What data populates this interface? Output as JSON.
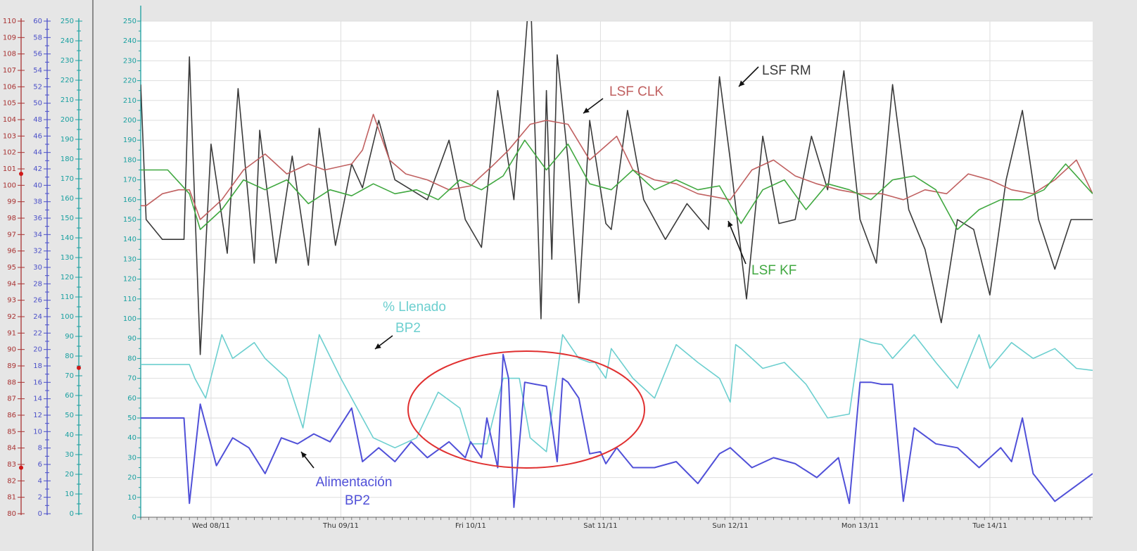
{
  "colors": {
    "axis1": "#a83232",
    "axis2": "#4a4fc8",
    "axis3": "#19a0a0",
    "lsf_rm": "#3a3a3a",
    "lsf_clk": "#c06060",
    "lsf_kf": "#40a840",
    "llenado": "#6ccfcf",
    "alimentacion": "#5050d8",
    "ellipse": "#e03030"
  },
  "left_axes": [
    {
      "min": 80,
      "max": 110,
      "step": 1,
      "label_step": 1,
      "color_key": "axis1",
      "marker_values": [
        100.7,
        82.8
      ]
    },
    {
      "min": 0,
      "max": 60,
      "step": 1,
      "label_step": 2,
      "color_key": "axis2",
      "marker_values": []
    },
    {
      "min": 0,
      "max": 250,
      "step": 5,
      "label_step": 10,
      "color_key": "axis3",
      "marker_values": [
        74
      ]
    }
  ],
  "chart_data": {
    "type": "line",
    "x_type": "time",
    "x_range": [
      "2011-11-07T11:00",
      "2011-11-14T19:00"
    ],
    "x_ticks": [
      {
        "t": "2011-11-08T00:00",
        "label": "Wed 08/11"
      },
      {
        "t": "2011-11-09T00:00",
        "label": "Thu 09/11"
      },
      {
        "t": "2011-11-10T00:00",
        "label": "Fri 10/11"
      },
      {
        "t": "2011-11-11T00:00",
        "label": "Sat 11/11"
      },
      {
        "t": "2011-11-12T00:00",
        "label": "Sun 12/11"
      },
      {
        "t": "2011-11-13T00:00",
        "label": "Mon 13/11"
      },
      {
        "t": "2011-11-14T00:00",
        "label": "Tue 14/11"
      }
    ],
    "ylim": [
      0,
      250
    ],
    "y_ticks": [
      0,
      10,
      20,
      30,
      40,
      50,
      60,
      70,
      80,
      90,
      100,
      110,
      120,
      130,
      140,
      150,
      160,
      170,
      180,
      190,
      200,
      210,
      220,
      230,
      240,
      250
    ],
    "grid": true,
    "series": [
      {
        "name": "LSF RM",
        "color_key": "lsf_rm",
        "x": [
          "2011-11-07T11:00",
          "2011-11-07T12:00",
          "2011-11-07T15:00",
          "2011-11-07T19:00",
          "2011-11-07T20:00",
          "2011-11-07T22:00",
          "2011-11-08T00:00",
          "2011-11-08T03:00",
          "2011-11-08T05:00",
          "2011-11-08T08:00",
          "2011-11-08T09:00",
          "2011-11-08T12:00",
          "2011-11-08T15:00",
          "2011-11-08T18:00",
          "2011-11-08T20:00",
          "2011-11-08T23:00",
          "2011-11-09T02:00",
          "2011-11-09T04:00",
          "2011-11-09T07:00",
          "2011-11-09T10:00",
          "2011-11-09T13:00",
          "2011-11-09T16:00",
          "2011-11-09T20:00",
          "2011-11-09T23:00",
          "2011-11-10T02:00",
          "2011-11-10T05:00",
          "2011-11-10T08:00",
          "2011-11-10T11:00",
          "2011-11-10T13:00",
          "2011-11-10T14:00",
          "2011-11-10T15:00",
          "2011-11-10T16:00",
          "2011-11-10T18:00",
          "2011-11-10T20:00",
          "2011-11-10T22:00",
          "2011-11-11T01:00",
          "2011-11-11T02:00",
          "2011-11-11T05:00",
          "2011-11-11T08:00",
          "2011-11-11T12:00",
          "2011-11-11T16:00",
          "2011-11-11T20:00",
          "2011-11-11T22:00",
          "2011-11-12T00:00",
          "2011-11-12T03:00",
          "2011-11-12T06:00",
          "2011-11-12T09:00",
          "2011-11-12T12:00",
          "2011-11-12T15:00",
          "2011-11-12T18:00",
          "2011-11-12T21:00",
          "2011-11-13T00:00",
          "2011-11-13T03:00",
          "2011-11-13T06:00",
          "2011-11-13T09:00",
          "2011-11-13T12:00",
          "2011-11-13T15:00",
          "2011-11-13T18:00",
          "2011-11-13T21:00",
          "2011-11-14T00:00",
          "2011-11-14T03:00",
          "2011-11-14T06:00",
          "2011-11-14T09:00",
          "2011-11-14T12:00",
          "2011-11-14T15:00",
          "2011-11-14T19:00"
        ],
        "y": [
          218,
          150,
          140,
          140,
          232,
          82,
          188,
          133,
          216,
          128,
          195,
          128,
          182,
          127,
          196,
          137,
          178,
          166,
          200,
          170,
          165,
          160,
          190,
          150,
          136,
          215,
          160,
          270,
          100,
          215,
          130,
          233,
          180,
          108,
          200,
          148,
          145,
          205,
          160,
          140,
          158,
          145,
          222,
          180,
          110,
          192,
          148,
          150,
          192,
          165,
          225,
          150,
          128,
          218,
          155,
          135,
          98,
          150,
          145,
          112,
          170,
          205,
          150,
          125,
          150,
          150
        ]
      },
      {
        "name": "LSF CLK",
        "color_key": "lsf_clk",
        "x": [
          "2011-11-07T11:00",
          "2011-11-07T12:00",
          "2011-11-07T15:00",
          "2011-11-07T18:00",
          "2011-11-07T20:00",
          "2011-11-07T22:00",
          "2011-11-08T02:00",
          "2011-11-08T06:00",
          "2011-11-08T10:00",
          "2011-11-08T14:00",
          "2011-11-08T18:00",
          "2011-11-08T21:00",
          "2011-11-09T02:00",
          "2011-11-09T04:00",
          "2011-11-09T06:00",
          "2011-11-09T09:00",
          "2011-11-09T12:00",
          "2011-11-09T16:00",
          "2011-11-09T20:00",
          "2011-11-10T00:00",
          "2011-11-10T04:00",
          "2011-11-10T07:00",
          "2011-11-10T11:00",
          "2011-11-10T14:00",
          "2011-11-10T18:00",
          "2011-11-10T22:00",
          "2011-11-11T03:00",
          "2011-11-11T06:00",
          "2011-11-11T10:00",
          "2011-11-11T14:00",
          "2011-11-11T18:00",
          "2011-11-12T00:00",
          "2011-11-12T04:00",
          "2011-11-12T08:00",
          "2011-11-12T12:00",
          "2011-11-12T16:00",
          "2011-11-12T20:00",
          "2011-11-13T00:00",
          "2011-11-13T04:00",
          "2011-11-13T08:00",
          "2011-11-13T12:00",
          "2011-11-13T16:00",
          "2011-11-13T20:00",
          "2011-11-14T00:00",
          "2011-11-14T04:00",
          "2011-11-14T08:00",
          "2011-11-14T12:00",
          "2011-11-14T16:00",
          "2011-11-14T19:00"
        ],
        "y": [
          157,
          157,
          163,
          165,
          165,
          150,
          160,
          175,
          183,
          173,
          178,
          175,
          178,
          185,
          203,
          180,
          173,
          170,
          165,
          167,
          177,
          185,
          198,
          200,
          198,
          180,
          192,
          175,
          170,
          168,
          163,
          160,
          175,
          180,
          172,
          168,
          165,
          163,
          163,
          160,
          165,
          163,
          173,
          170,
          165,
          163,
          170,
          180,
          163
        ]
      },
      {
        "name": "LSF KF",
        "color_key": "lsf_kf",
        "x": [
          "2011-11-07T11:00",
          "2011-11-07T16:00",
          "2011-11-07T20:00",
          "2011-11-07T22:00",
          "2011-11-08T02:00",
          "2011-11-08T06:00",
          "2011-11-08T10:00",
          "2011-11-08T14:00",
          "2011-11-08T18:00",
          "2011-11-08T22:00",
          "2011-11-09T02:00",
          "2011-11-09T06:00",
          "2011-11-09T10:00",
          "2011-11-09T14:00",
          "2011-11-09T18:00",
          "2011-11-09T22:00",
          "2011-11-10T02:00",
          "2011-11-10T06:00",
          "2011-11-10T10:00",
          "2011-11-10T14:00",
          "2011-11-10T18:00",
          "2011-11-10T22:00",
          "2011-11-11T02:00",
          "2011-11-11T06:00",
          "2011-11-11T10:00",
          "2011-11-11T14:00",
          "2011-11-11T18:00",
          "2011-11-11T22:00",
          "2011-11-12T02:00",
          "2011-11-12T06:00",
          "2011-11-12T10:00",
          "2011-11-12T14:00",
          "2011-11-12T18:00",
          "2011-11-12T22:00",
          "2011-11-13T02:00",
          "2011-11-13T06:00",
          "2011-11-13T10:00",
          "2011-11-13T14:00",
          "2011-11-13T18:00",
          "2011-11-13T22:00",
          "2011-11-14T02:00",
          "2011-11-14T06:00",
          "2011-11-14T10:00",
          "2011-11-14T14:00",
          "2011-11-14T19:00"
        ],
        "y": [
          175,
          175,
          163,
          145,
          155,
          170,
          165,
          170,
          158,
          165,
          162,
          168,
          163,
          165,
          160,
          170,
          165,
          172,
          190,
          175,
          188,
          168,
          165,
          175,
          165,
          170,
          165,
          167,
          148,
          165,
          170,
          155,
          168,
          165,
          160,
          170,
          172,
          165,
          145,
          155,
          160,
          160,
          165,
          178,
          163
        ]
      },
      {
        "name": "% Llenado BP2",
        "color_key": "llenado",
        "x": [
          "2011-11-07T11:00",
          "2011-11-07T20:00",
          "2011-11-07T21:00",
          "2011-11-07T23:00",
          "2011-11-08T02:00",
          "2011-11-08T04:00",
          "2011-11-08T08:00",
          "2011-11-08T10:00",
          "2011-11-08T14:00",
          "2011-11-08T17:00",
          "2011-11-08T20:00",
          "2011-11-09T00:00",
          "2011-11-09T03:00",
          "2011-11-09T06:00",
          "2011-11-09T10:00",
          "2011-11-09T14:00",
          "2011-11-09T18:00",
          "2011-11-09T22:00",
          "2011-11-10T00:00",
          "2011-11-10T03:00",
          "2011-11-10T06:00",
          "2011-11-10T09:00",
          "2011-11-10T11:00",
          "2011-11-10T14:00",
          "2011-11-10T17:00",
          "2011-11-10T20:00",
          "2011-11-10T22:00",
          "2011-11-10T23:00",
          "2011-11-11T01:00",
          "2011-11-11T02:00",
          "2011-11-11T06:00",
          "2011-11-11T10:00",
          "2011-11-11T14:00",
          "2011-11-11T18:00",
          "2011-11-11T22:00",
          "2011-11-12T00:00",
          "2011-11-12T01:00",
          "2011-11-12T02:00",
          "2011-11-12T06:00",
          "2011-11-12T10:00",
          "2011-11-12T14:00",
          "2011-11-12T18:00",
          "2011-11-12T22:00",
          "2011-11-13T00:00",
          "2011-11-13T02:00",
          "2011-11-13T04:00",
          "2011-11-13T06:00",
          "2011-11-13T10:00",
          "2011-11-13T14:00",
          "2011-11-13T18:00",
          "2011-11-13T22:00",
          "2011-11-14T00:00",
          "2011-11-14T04:00",
          "2011-11-14T08:00",
          "2011-11-14T12:00",
          "2011-11-14T16:00",
          "2011-11-14T19:00"
        ],
        "y": [
          77,
          77,
          70,
          60,
          92,
          80,
          88,
          80,
          70,
          45,
          92,
          70,
          55,
          40,
          35,
          40,
          63,
          55,
          37,
          37,
          70,
          70,
          40,
          33,
          92,
          80,
          78,
          78,
          70,
          85,
          70,
          60,
          87,
          78,
          70,
          58,
          87,
          85,
          75,
          78,
          67,
          50,
          52,
          90,
          88,
          87,
          80,
          92,
          78,
          65,
          92,
          75,
          88,
          80,
          85,
          75,
          74
        ]
      },
      {
        "name": "Alimentación BP2",
        "color_key": "alimentacion",
        "x": [
          "2011-11-07T11:00",
          "2011-11-07T19:00",
          "2011-11-07T20:00",
          "2011-11-07T22:00",
          "2011-11-08T01:00",
          "2011-11-08T04:00",
          "2011-11-08T07:00",
          "2011-11-08T10:00",
          "2011-11-08T13:00",
          "2011-11-08T16:00",
          "2011-11-08T19:00",
          "2011-11-08T22:00",
          "2011-11-09T02:00",
          "2011-11-09T04:00",
          "2011-11-09T07:00",
          "2011-11-09T10:00",
          "2011-11-09T13:00",
          "2011-11-09T16:00",
          "2011-11-09T20:00",
          "2011-11-09T23:00",
          "2011-11-10T00:00",
          "2011-11-10T02:00",
          "2011-11-10T03:00",
          "2011-11-10T05:00",
          "2011-11-10T06:00",
          "2011-11-10T07:00",
          "2011-11-10T08:00",
          "2011-11-10T10:00",
          "2011-11-10T12:00",
          "2011-11-10T14:00",
          "2011-11-10T16:00",
          "2011-11-10T17:00",
          "2011-11-10T18:00",
          "2011-11-10T20:00",
          "2011-11-10T22:00",
          "2011-11-11T00:00",
          "2011-11-11T01:00",
          "2011-11-11T03:00",
          "2011-11-11T06:00",
          "2011-11-11T10:00",
          "2011-11-11T14:00",
          "2011-11-11T18:00",
          "2011-11-11T22:00",
          "2011-11-12T00:00",
          "2011-11-12T04:00",
          "2011-11-12T08:00",
          "2011-11-12T12:00",
          "2011-11-12T16:00",
          "2011-11-12T20:00",
          "2011-11-12T22:00",
          "2011-11-13T00:00",
          "2011-11-13T02:00",
          "2011-11-13T04:00",
          "2011-11-13T06:00",
          "2011-11-13T08:00",
          "2011-11-13T10:00",
          "2011-11-13T14:00",
          "2011-11-13T18:00",
          "2011-11-13T22:00",
          "2011-11-14T00:00",
          "2011-11-14T02:00",
          "2011-11-14T04:00",
          "2011-11-14T06:00",
          "2011-11-14T08:00",
          "2011-11-14T12:00",
          "2011-11-14T19:00"
        ],
        "y": [
          50,
          50,
          7,
          57,
          26,
          40,
          35,
          22,
          40,
          37,
          42,
          38,
          55,
          28,
          35,
          28,
          38,
          30,
          38,
          30,
          38,
          30,
          50,
          25,
          82,
          70,
          5,
          68,
          67,
          66,
          28,
          70,
          68,
          60,
          32,
          33,
          27,
          35,
          25,
          25,
          28,
          17,
          32,
          35,
          25,
          30,
          27,
          20,
          30,
          7,
          68,
          68,
          67,
          67,
          8,
          45,
          37,
          35,
          25,
          30,
          35,
          28,
          50,
          22,
          8,
          22
        ]
      }
    ],
    "annotations": [
      {
        "text": "LSF RM",
        "color_key": "lsf_rm"
      },
      {
        "text": "LSF CLK",
        "color_key": "lsf_clk"
      },
      {
        "text": "LSF KF",
        "color_key": "lsf_kf"
      },
      {
        "text": "% Llenado",
        "color_key": "llenado"
      },
      {
        "text": "BP2",
        "color_key": "llenado"
      },
      {
        "text": "Alimentación",
        "color_key": "alimentacion"
      },
      {
        "text": "BP2",
        "color_key": "alimentacion"
      }
    ]
  }
}
